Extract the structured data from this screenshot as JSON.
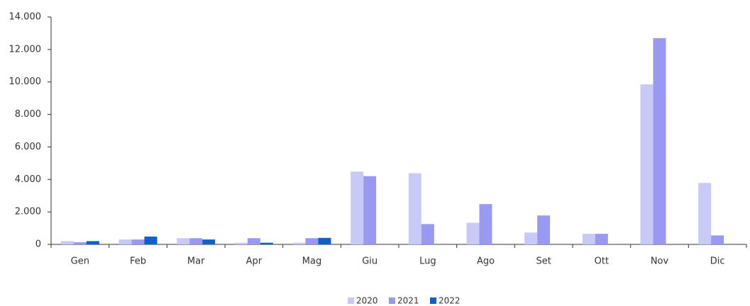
{
  "chart_data": {
    "type": "bar",
    "categories": [
      "Gen",
      "Feb",
      "Mar",
      "Apr",
      "Mag",
      "Giu",
      "Lug",
      "Ago",
      "Set",
      "Ott",
      "Nov",
      "Dic"
    ],
    "series": [
      {
        "name": "2020",
        "color": "#c9c9f7",
        "values": [
          200,
          300,
          380,
          100,
          100,
          4480,
          4380,
          1330,
          730,
          650,
          9850,
          3780
        ]
      },
      {
        "name": "2021",
        "color": "#9999f2",
        "values": [
          130,
          300,
          380,
          380,
          380,
          4200,
          1250,
          2480,
          1780,
          650,
          12700,
          550
        ]
      },
      {
        "name": "2022",
        "color": "#1060c8",
        "values": [
          200,
          480,
          300,
          100,
          400,
          null,
          null,
          null,
          null,
          null,
          null,
          null
        ]
      }
    ],
    "ylim": [
      0,
      14000
    ],
    "yticks": [
      0,
      {
        "value": 2000,
        "label": "2.000"
      },
      {
        "value": 4000,
        "label": "4.000"
      },
      {
        "value": 6000,
        "label": "6.000"
      },
      {
        "value": 8000,
        "label": "8.000"
      },
      {
        "value": 10000,
        "label": "10.000"
      },
      {
        "value": 12000,
        "label": "12.000"
      },
      {
        "value": 14000,
        "label": "14.000"
      }
    ],
    "legend": "bottom"
  }
}
